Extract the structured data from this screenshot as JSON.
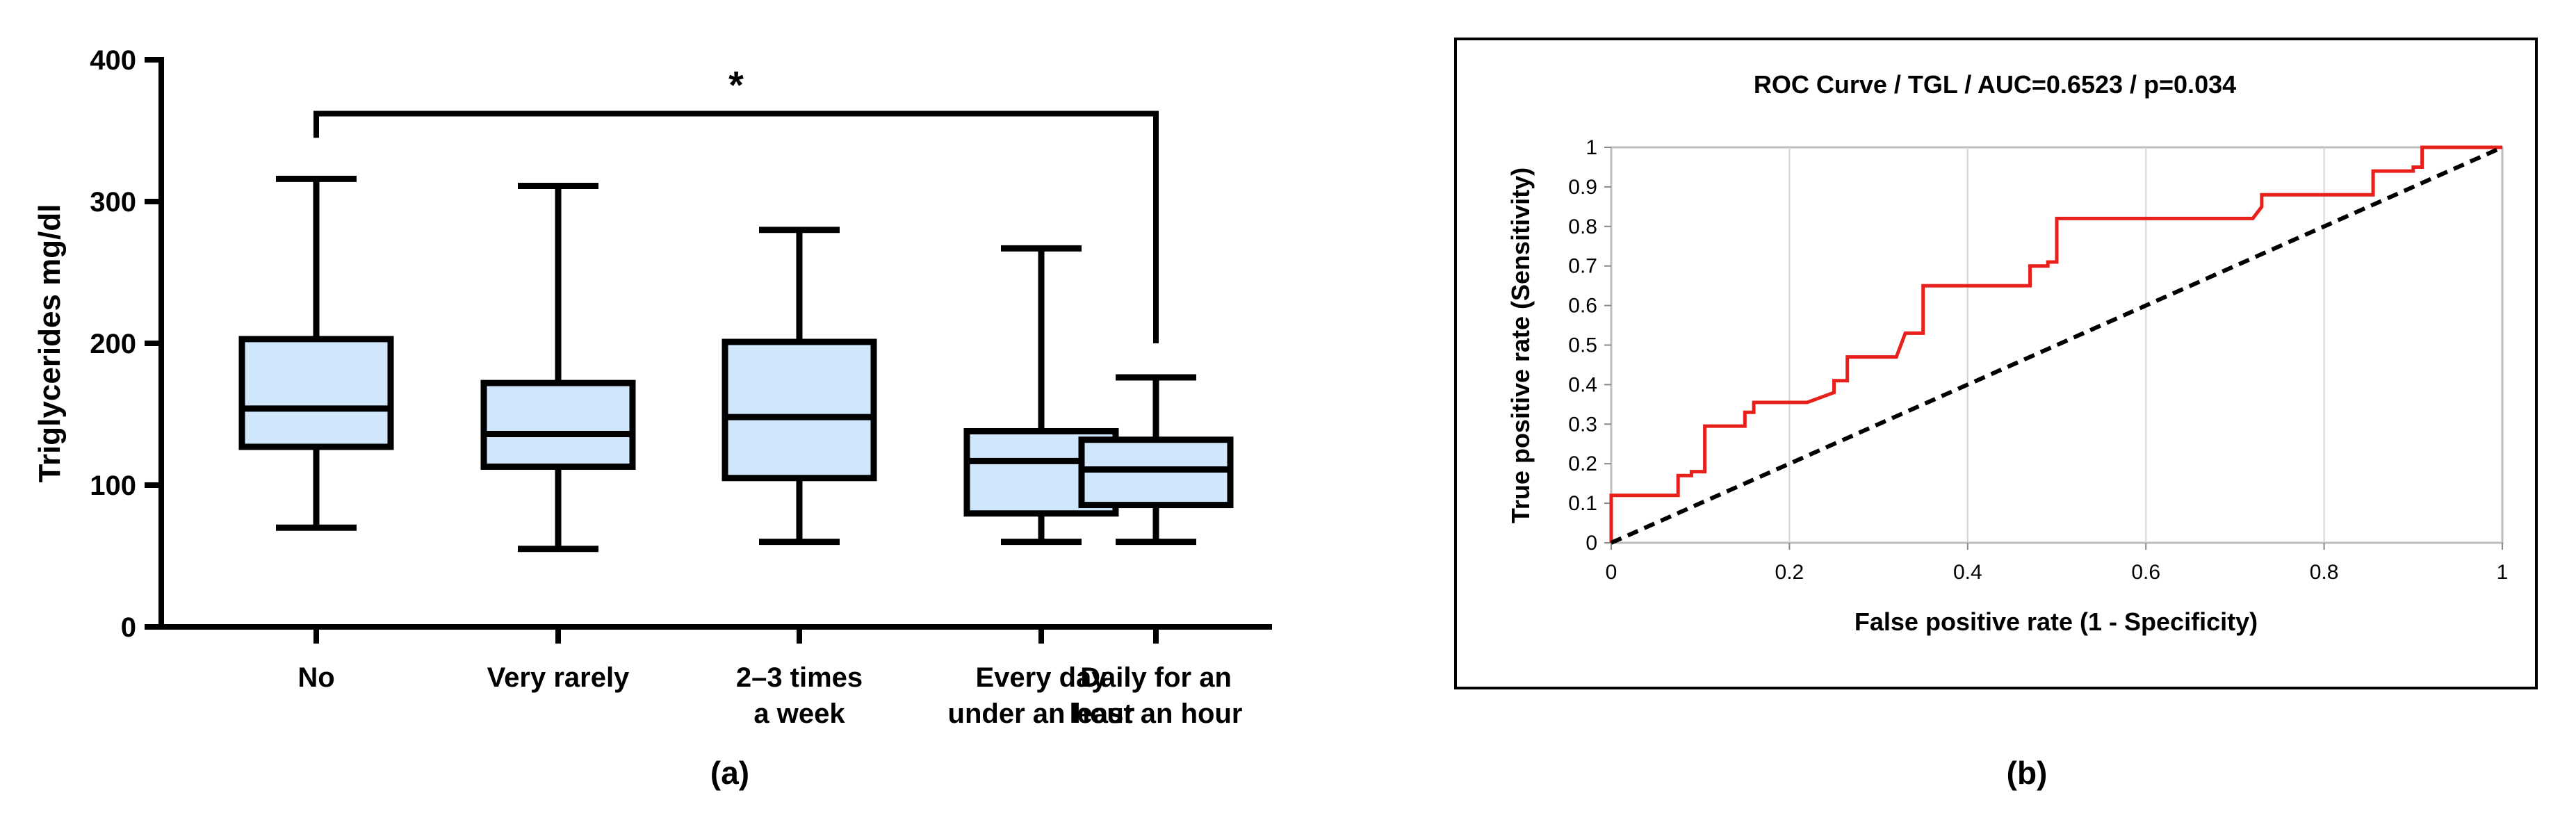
{
  "chart_data": [
    {
      "type": "box",
      "panel_label": "(a)",
      "ylabel": "Triglycerides mg/dl",
      "ylim": [
        0,
        400
      ],
      "yticks": [
        "0",
        "100",
        "200",
        "300",
        "400"
      ],
      "categories": [
        [
          "No"
        ],
        [
          "Very rarely"
        ],
        [
          "2–3 times",
          "a week"
        ],
        [
          "Every day",
          "under an hour"
        ],
        [
          "Daily for an",
          "least an hour"
        ]
      ],
      "boxes": [
        {
          "min": 70,
          "q1": 127,
          "median": 154,
          "q3": 203,
          "max": 316
        },
        {
          "min": 55,
          "q1": 113,
          "median": 136,
          "q3": 172,
          "max": 311
        },
        {
          "min": 60,
          "q1": 105,
          "median": 148,
          "q3": 201,
          "max": 280
        },
        {
          "min": 60,
          "q1": 80,
          "median": 117,
          "q3": 138,
          "max": 267
        },
        {
          "min": 60,
          "q1": 86,
          "median": 111,
          "q3": 132,
          "max": 176
        }
      ],
      "significance": {
        "from": 0,
        "to": 4,
        "label": "*",
        "y": 362,
        "end_y": [
          345,
          200
        ]
      },
      "colors": {
        "box_fill": "#cfe6fb",
        "stroke": "#000000"
      }
    },
    {
      "type": "line",
      "panel_label": "(b)",
      "title": "ROC Curve / TGL / AUC=0.6523 / p=0.034",
      "xlabel": "False positive rate (1 - Specificity)",
      "ylabel": "True positive rate (Sensitivity)",
      "xlim": [
        0,
        1
      ],
      "ylim": [
        0,
        1
      ],
      "xticks": [
        "0",
        "0.2",
        "0.4",
        "0.6",
        "0.8",
        "1"
      ],
      "yticks": [
        "0",
        "0.1",
        "0.2",
        "0.3",
        "0.4",
        "0.5",
        "0.6",
        "0.7",
        "0.8",
        "0.9",
        "1"
      ],
      "grid": "vertical",
      "series": [
        {
          "color": "#e8201c",
          "style": "solid",
          "x": [
            0,
            0,
            0.075,
            0.075,
            0.09,
            0.09,
            0.105,
            0.105,
            0.15,
            0.15,
            0.16,
            0.16,
            0.22,
            0.25,
            0.25,
            0.265,
            0.265,
            0.32,
            0.33,
            0.35,
            0.35,
            0.47,
            0.47,
            0.49,
            0.49,
            0.5,
            0.5,
            0.72,
            0.73,
            0.73,
            0.855,
            0.855,
            0.865,
            0.865,
            0.9,
            0.9,
            0.91,
            0.91,
            1.0
          ],
          "y": [
            0,
            0.12,
            0.12,
            0.17,
            0.17,
            0.18,
            0.18,
            0.295,
            0.295,
            0.33,
            0.33,
            0.355,
            0.355,
            0.38,
            0.41,
            0.41,
            0.47,
            0.47,
            0.53,
            0.53,
            0.65,
            0.65,
            0.7,
            0.7,
            0.71,
            0.71,
            0.82,
            0.82,
            0.85,
            0.88,
            0.88,
            0.94,
            0.94,
            0.94,
            0.94,
            0.95,
            0.95,
            1.0,
            1.0
          ]
        },
        {
          "color": "#000000",
          "style": "dashed",
          "x": [
            0,
            1
          ],
          "y": [
            0,
            1
          ]
        }
      ]
    }
  ]
}
